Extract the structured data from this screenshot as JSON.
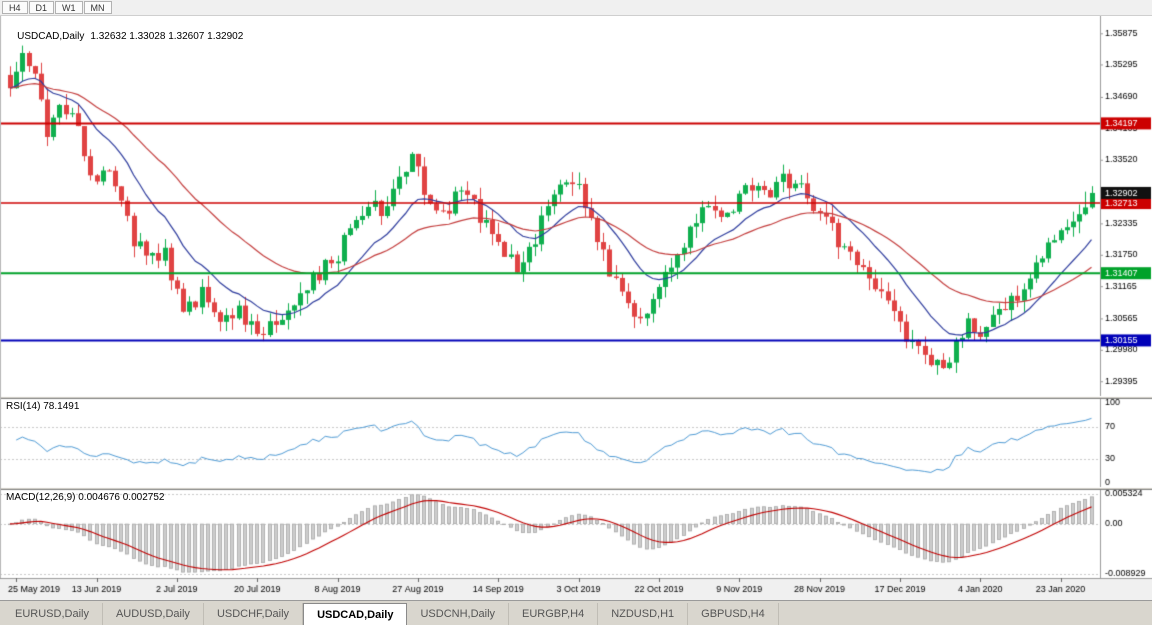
{
  "toolbar": {
    "timeframes": [
      {
        "label": "H4"
      },
      {
        "label": "D1"
      },
      {
        "label": "W1"
      },
      {
        "label": "MN"
      }
    ]
  },
  "chart": {
    "title": "USDCAD,Daily",
    "quote_ohlc": "1.32632 1.33028 1.32607 1.32902",
    "rsi_label": "RSI(14) 78.1491",
    "macd_label": "MACD(12,26,9) 0.004676 0.002752"
  },
  "chart_data": {
    "type": "candlestick+indicators",
    "symbol": "USDCAD",
    "timeframe": "Daily",
    "last_quote": {
      "open": 1.32632,
      "high": 1.33028,
      "low": 1.32607,
      "close": 1.32902
    },
    "bars": 176,
    "price_scale": {
      "top": 1.3616,
      "bottom": 1.2912
    },
    "price_axis_labels": [
      "1.35875",
      "1.35295",
      "1.34690",
      "1.34105",
      "1.33520",
      "1.32335",
      "1.31750",
      "1.31165",
      "1.30565",
      "1.29980",
      "1.29395"
    ],
    "x_axis_labels": [
      "25 May 2019",
      "13 Jun 2019",
      "2 Jul 2019",
      "20 Jul 2019",
      "8 Aug 2019",
      "27 Aug 2019",
      "14 Sep 2019",
      "3 Oct 2019",
      "22 Oct 2019",
      "9 Nov 2019",
      "28 Nov 2019",
      "17 Dec 2019",
      "4 Jan 2020",
      "23 Jan 2020"
    ],
    "price_path": [
      [
        0,
        1.349
      ],
      [
        2,
        1.3548
      ],
      [
        4,
        1.3495
      ],
      [
        6,
        1.34
      ],
      [
        8,
        1.3458
      ],
      [
        11,
        1.341
      ],
      [
        14,
        1.33
      ],
      [
        16,
        1.3345
      ],
      [
        19,
        1.323
      ],
      [
        22,
        1.3165
      ],
      [
        25,
        1.318
      ],
      [
        28,
        1.3075
      ],
      [
        31,
        1.3105
      ],
      [
        34,
        1.305
      ],
      [
        37,
        1.3078
      ],
      [
        40,
        1.303
      ],
      [
        43,
        1.3058
      ],
      [
        46,
        1.3098
      ],
      [
        49,
        1.3128
      ],
      [
        52,
        1.3158
      ],
      [
        55,
        1.3215
      ],
      [
        58,
        1.3278
      ],
      [
        60,
        1.3252
      ],
      [
        63,
        1.3308
      ],
      [
        65,
        1.3362
      ],
      [
        67,
        1.329
      ],
      [
        70,
        1.3245
      ],
      [
        73,
        1.3298
      ],
      [
        76,
        1.3252
      ],
      [
        78,
        1.3205
      ],
      [
        81,
        1.3165
      ],
      [
        83,
        1.3152
      ],
      [
        86,
        1.3238
      ],
      [
        89,
        1.3315
      ],
      [
        92,
        1.3298
      ],
      [
        95,
        1.3215
      ],
      [
        98,
        1.312
      ],
      [
        101,
        1.3058
      ],
      [
        104,
        1.3088
      ],
      [
        107,
        1.3148
      ],
      [
        110,
        1.3215
      ],
      [
        113,
        1.3262
      ],
      [
        116,
        1.3242
      ],
      [
        119,
        1.3292
      ],
      [
        122,
        1.3282
      ],
      [
        125,
        1.3315
      ],
      [
        128,
        1.3298
      ],
      [
        131,
        1.3255
      ],
      [
        134,
        1.3205
      ],
      [
        137,
        1.3162
      ],
      [
        140,
        1.3125
      ],
      [
        143,
        1.308
      ],
      [
        146,
        1.3
      ],
      [
        149,
        1.2962
      ],
      [
        152,
        1.299
      ],
      [
        155,
        1.3048
      ],
      [
        157,
        1.3035
      ],
      [
        160,
        1.3068
      ],
      [
        163,
        1.3102
      ],
      [
        166,
        1.3148
      ],
      [
        169,
        1.32
      ],
      [
        172,
        1.3248
      ],
      [
        175,
        1.329
      ]
    ],
    "levels": [
      {
        "price": 1.34197,
        "tag": "1.34197",
        "color": "#cc0000",
        "width": 2
      },
      {
        "price": 1.32713,
        "tag": "1.32713",
        "color": "#cc0000",
        "width": 1.5
      },
      {
        "price": 1.31407,
        "tag": "1.31407",
        "color": "#00a22a",
        "width": 2
      },
      {
        "price": 1.30155,
        "tag": "1.30155",
        "color": "#0000b8",
        "width": 2
      }
    ],
    "current_price_tag": {
      "price": 1.32902,
      "tag": "1.32902",
      "color": "#111111"
    },
    "moving_averages": [
      {
        "period": 13,
        "color": "#2f3d9e"
      },
      {
        "period": 34,
        "color": "#c43e3e"
      }
    ],
    "rsi": {
      "period": 14,
      "current": 78.1491,
      "levels": [
        100,
        70,
        30,
        0
      ],
      "color": "#4f9bd5"
    },
    "macd": {
      "params": "12,26,9",
      "main": 0.004676,
      "signal": 0.002752,
      "scale_max": 0.005324,
      "scale_min": -0.008929,
      "labels": [
        "0.005324",
        "0.00",
        "-0.008929"
      ],
      "hist_color": "#cdcdcd",
      "hist_border": "#a9a9a9",
      "signal_color": "#c00000"
    },
    "colors": {
      "up": "#0faf4e",
      "down": "#e04343",
      "bg": "#ffffff",
      "grid": "#c9c9c9"
    }
  },
  "tabs": {
    "items": [
      {
        "label": "EURUSD,Daily",
        "active": false
      },
      {
        "label": "AUDUSD,Daily",
        "active": false
      },
      {
        "label": "USDCHF,Daily",
        "active": false
      },
      {
        "label": "USDCAD,Daily",
        "active": true
      },
      {
        "label": "USDCNH,Daily",
        "active": false
      },
      {
        "label": "EURGBP,H4",
        "active": false
      },
      {
        "label": "NZDUSD,H1",
        "active": false
      },
      {
        "label": "GBPUSD,H4",
        "active": false
      }
    ]
  }
}
